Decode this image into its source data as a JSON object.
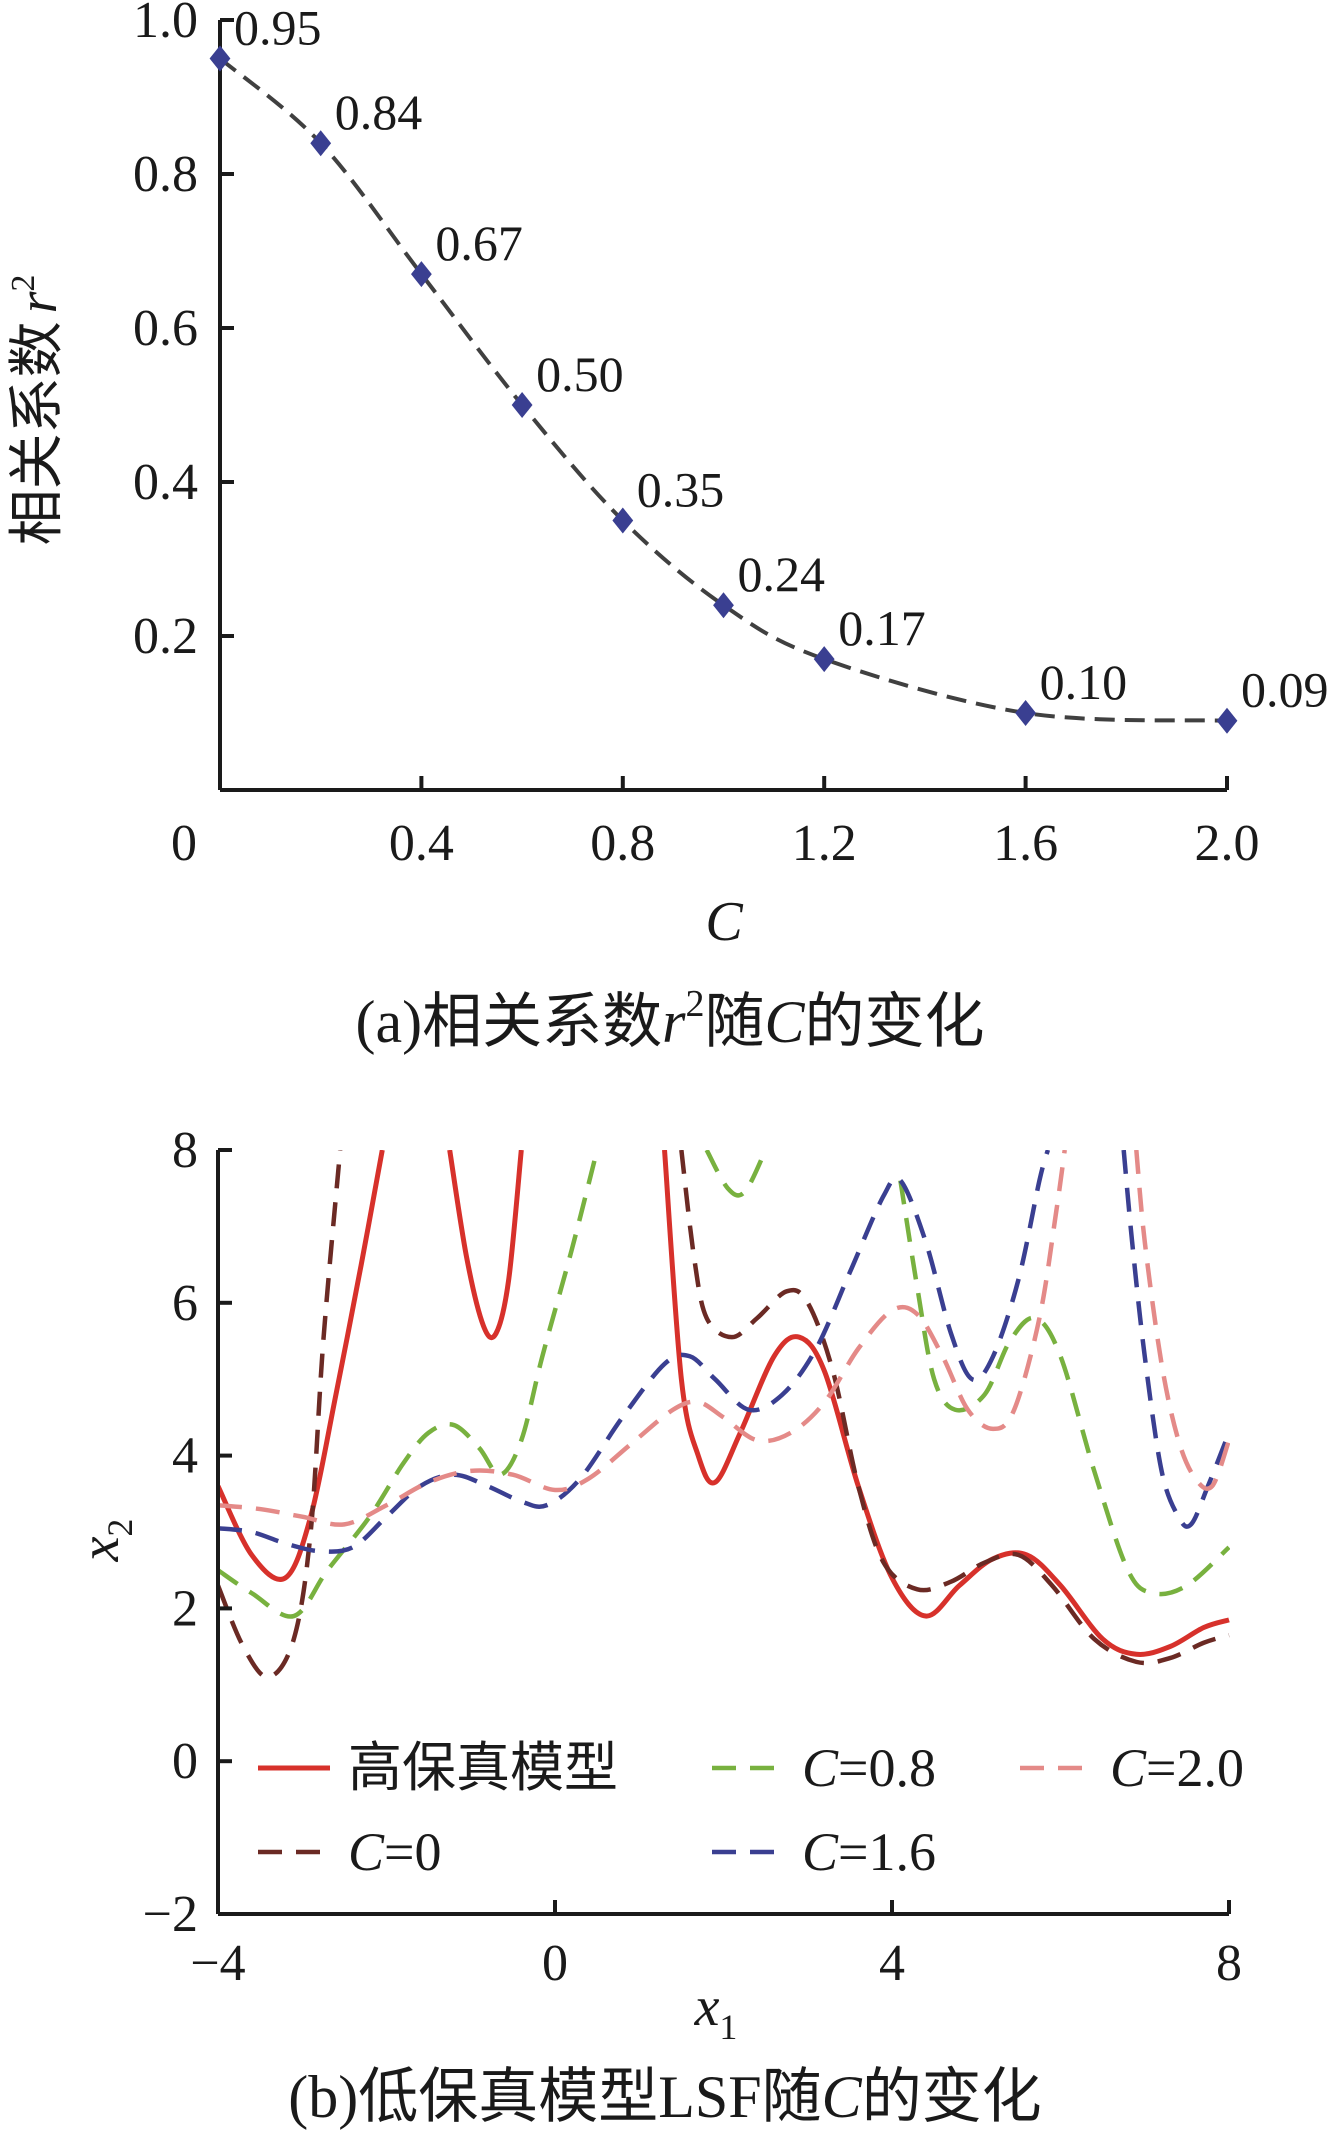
{
  "chart_data": [
    {
      "type": "line",
      "title": "",
      "caption_parts": {
        "prefix": "(a)",
        "main": "相关系数",
        "var": "r",
        "sup": "2",
        "mid": "随",
        "var2": "C",
        "tail": "的变化"
      },
      "xlabel": "C",
      "ylabel": "相关系数",
      "ylabel_var": "r",
      "ylabel_sup": "2",
      "xlim": [
        0,
        2.0
      ],
      "ylim": [
        0,
        1.0
      ],
      "x_tick_values": [
        0,
        0.4,
        0.8,
        1.2,
        1.6,
        2.0
      ],
      "x_tick_labels": [
        "0",
        "0.4",
        "0.8",
        "1.2",
        "1.6",
        "2.0"
      ],
      "y_tick_values": [
        0.2,
        0.4,
        0.6,
        0.8,
        1.0
      ],
      "y_tick_labels": [
        "0.2",
        "0.4",
        "0.6",
        "0.8",
        "1.0"
      ],
      "marker_color": "#3a3f91",
      "line_color": "#404040",
      "series": [
        {
          "x": [
            0,
            0.2,
            0.4,
            0.6,
            0.8,
            1.0,
            1.2,
            1.6,
            2.0
          ],
          "values": [
            0.95,
            0.84,
            0.67,
            0.5,
            0.35,
            0.24,
            0.17,
            0.1,
            0.09
          ],
          "labels": [
            "0.95",
            "0.84",
            "0.67",
            "0.50",
            "0.35",
            "0.24",
            "0.17",
            "0.10",
            "0.09"
          ]
        }
      ]
    },
    {
      "type": "line",
      "title": "",
      "caption_parts": {
        "prefix": "(b)",
        "main": "低保真模型LSF随",
        "var": "C",
        "tail": "的变化"
      },
      "xlabel": "x",
      "xlabel_sub": "1",
      "ylabel": "x",
      "ylabel_sub": "2",
      "xlim": [
        -4,
        8
      ],
      "ylim": [
        -2,
        8
      ],
      "x_tick_values": [
        -4,
        0,
        4,
        8
      ],
      "x_tick_labels": [
        "−4",
        "0",
        "4",
        "8"
      ],
      "y_tick_values": [
        -2,
        0,
        2,
        4,
        6,
        8
      ],
      "y_tick_labels": [
        "−2",
        "0",
        "2",
        "4",
        "6",
        "8"
      ],
      "legend_position": "lower-left",
      "series": [
        {
          "name": "高保真模型",
          "var": "",
          "val": "",
          "color": "#d7312b",
          "dash": "solid",
          "segments": [
            [
              [
                -4,
                3.6
              ],
              [
                -3.6,
                2.7
              ],
              [
                -3.2,
                2.4
              ],
              [
                -2.9,
                3.2
              ],
              [
                -2.6,
                4.8
              ],
              [
                -2.3,
                6.5
              ],
              [
                -2.05,
                8
              ]
            ],
            [
              [
                -1.25,
                8
              ],
              [
                -1.05,
                6.6
              ],
              [
                -0.85,
                5.7
              ],
              [
                -0.7,
                5.6
              ],
              [
                -0.55,
                6.3
              ],
              [
                -0.4,
                8
              ]
            ],
            [
              [
                1.3,
                8
              ],
              [
                1.5,
                5.0
              ],
              [
                1.7,
                4.0
              ],
              [
                1.9,
                3.65
              ],
              [
                2.2,
                4.3
              ],
              [
                2.6,
                5.3
              ],
              [
                2.9,
                5.55
              ],
              [
                3.2,
                5.1
              ],
              [
                3.6,
                3.6
              ],
              [
                4.0,
                2.4
              ],
              [
                4.4,
                1.9
              ],
              [
                4.8,
                2.3
              ],
              [
                5.2,
                2.65
              ],
              [
                5.6,
                2.7
              ],
              [
                6.0,
                2.3
              ],
              [
                6.5,
                1.6
              ],
              [
                6.9,
                1.4
              ],
              [
                7.3,
                1.5
              ],
              [
                7.7,
                1.75
              ],
              [
                8.0,
                1.85
              ]
            ]
          ]
        },
        {
          "name": "",
          "var": "C",
          "val": "=0",
          "color": "#6b2a24",
          "dash": "dashed",
          "segments": [
            [
              [
                -4,
                2.3
              ],
              [
                -3.7,
                1.5
              ],
              [
                -3.4,
                1.1
              ],
              [
                -3.1,
                1.6
              ],
              [
                -2.9,
                3.0
              ],
              [
                -2.75,
                5.5
              ],
              [
                -2.55,
                8
              ]
            ],
            [
              [
                1.5,
                8
              ],
              [
                1.65,
                6.6
              ],
              [
                1.8,
                5.8
              ],
              [
                2.1,
                5.55
              ],
              [
                2.4,
                5.8
              ],
              [
                2.75,
                6.15
              ],
              [
                3.0,
                6.0
              ],
              [
                3.3,
                5.1
              ],
              [
                3.6,
                3.6
              ],
              [
                3.9,
                2.6
              ],
              [
                4.3,
                2.25
              ],
              [
                4.7,
                2.35
              ],
              [
                5.1,
                2.6
              ],
              [
                5.5,
                2.7
              ],
              [
                5.9,
                2.3
              ],
              [
                6.4,
                1.6
              ],
              [
                6.9,
                1.3
              ],
              [
                7.3,
                1.35
              ],
              [
                7.7,
                1.55
              ],
              [
                8.0,
                1.65
              ]
            ]
          ]
        },
        {
          "name": "",
          "var": "C",
          "val": "=0.8",
          "color": "#78b13f",
          "dash": "dashed",
          "segments": [
            [
              [
                -4,
                2.5
              ],
              [
                -3.6,
                2.2
              ],
              [
                -3.1,
                1.9
              ],
              [
                -2.7,
                2.5
              ],
              [
                -2.2,
                3.2
              ],
              [
                -1.8,
                3.9
              ],
              [
                -1.5,
                4.3
              ],
              [
                -1.2,
                4.4
              ],
              [
                -0.9,
                4.1
              ],
              [
                -0.65,
                3.75
              ],
              [
                -0.4,
                4.2
              ],
              [
                -0.15,
                5.3
              ],
              [
                0.2,
                6.7
              ],
              [
                0.5,
                8
              ]
            ],
            [
              [
                1.8,
                8
              ],
              [
                2.05,
                7.5
              ],
              [
                2.25,
                7.45
              ],
              [
                2.5,
                8
              ]
            ],
            [
              [
                4.1,
                7.6
              ],
              [
                4.3,
                6.2
              ],
              [
                4.5,
                5.0
              ],
              [
                4.75,
                4.6
              ],
              [
                5.1,
                4.8
              ],
              [
                5.4,
                5.5
              ],
              [
                5.7,
                5.8
              ],
              [
                6.0,
                5.3
              ],
              [
                6.4,
                3.8
              ],
              [
                6.8,
                2.5
              ],
              [
                7.1,
                2.2
              ],
              [
                7.5,
                2.3
              ],
              [
                8.0,
                2.8
              ]
            ]
          ]
        },
        {
          "name": "",
          "var": "C",
          "val": "=1.6",
          "color": "#3a3f91",
          "dash": "dashed",
          "segments": [
            [
              [
                -4,
                3.05
              ],
              [
                -3.6,
                3.0
              ],
              [
                -3.2,
                2.85
              ],
              [
                -2.8,
                2.75
              ],
              [
                -2.4,
                2.8
              ],
              [
                -2.0,
                3.2
              ],
              [
                -1.6,
                3.6
              ],
              [
                -1.2,
                3.75
              ],
              [
                -0.8,
                3.6
              ],
              [
                -0.4,
                3.4
              ],
              [
                -0.1,
                3.35
              ],
              [
                0.3,
                3.7
              ],
              [
                0.8,
                4.5
              ],
              [
                1.3,
                5.2
              ],
              [
                1.6,
                5.3
              ],
              [
                1.9,
                5.0
              ],
              [
                2.3,
                4.6
              ],
              [
                2.7,
                4.8
              ],
              [
                3.1,
                5.4
              ],
              [
                3.5,
                6.4
              ],
              [
                3.9,
                7.4
              ],
              [
                4.1,
                7.6
              ],
              [
                4.4,
                6.8
              ],
              [
                4.7,
                5.6
              ],
              [
                4.95,
                5.0
              ],
              [
                5.2,
                5.3
              ],
              [
                5.5,
                6.3
              ],
              [
                5.75,
                7.6
              ],
              [
                5.85,
                8
              ]
            ],
            [
              [
                6.75,
                8
              ],
              [
                6.85,
                6.8
              ],
              [
                7.0,
                5.3
              ],
              [
                7.2,
                3.8
              ],
              [
                7.4,
                3.2
              ],
              [
                7.55,
                3.1
              ],
              [
                7.75,
                3.6
              ],
              [
                8.0,
                4.3
              ]
            ]
          ]
        },
        {
          "name": "",
          "var": "C",
          "val": "=2.0",
          "color": "#e48a88",
          "dash": "dashed",
          "segments": [
            [
              [
                -4,
                3.35
              ],
              [
                -3.5,
                3.3
              ],
              [
                -3.0,
                3.2
              ],
              [
                -2.5,
                3.1
              ],
              [
                -2.0,
                3.35
              ],
              [
                -1.5,
                3.65
              ],
              [
                -1.0,
                3.8
              ],
              [
                -0.5,
                3.75
              ],
              [
                0.0,
                3.55
              ],
              [
                0.4,
                3.7
              ],
              [
                0.9,
                4.15
              ],
              [
                1.4,
                4.6
              ],
              [
                1.7,
                4.7
              ],
              [
                2.0,
                4.5
              ],
              [
                2.4,
                4.2
              ],
              [
                2.8,
                4.3
              ],
              [
                3.2,
                4.7
              ],
              [
                3.6,
                5.4
              ],
              [
                4.0,
                5.9
              ],
              [
                4.3,
                5.85
              ],
              [
                4.6,
                5.3
              ],
              [
                4.9,
                4.6
              ],
              [
                5.2,
                4.35
              ],
              [
                5.45,
                4.6
              ],
              [
                5.75,
                5.8
              ],
              [
                5.95,
                7.2
              ],
              [
                6.05,
                8
              ]
            ],
            [
              [
                6.9,
                8
              ],
              [
                7.0,
                6.8
              ],
              [
                7.2,
                5.2
              ],
              [
                7.4,
                4.2
              ],
              [
                7.6,
                3.7
              ],
              [
                7.8,
                3.6
              ],
              [
                8.0,
                4.2
              ]
            ]
          ]
        }
      ]
    }
  ]
}
